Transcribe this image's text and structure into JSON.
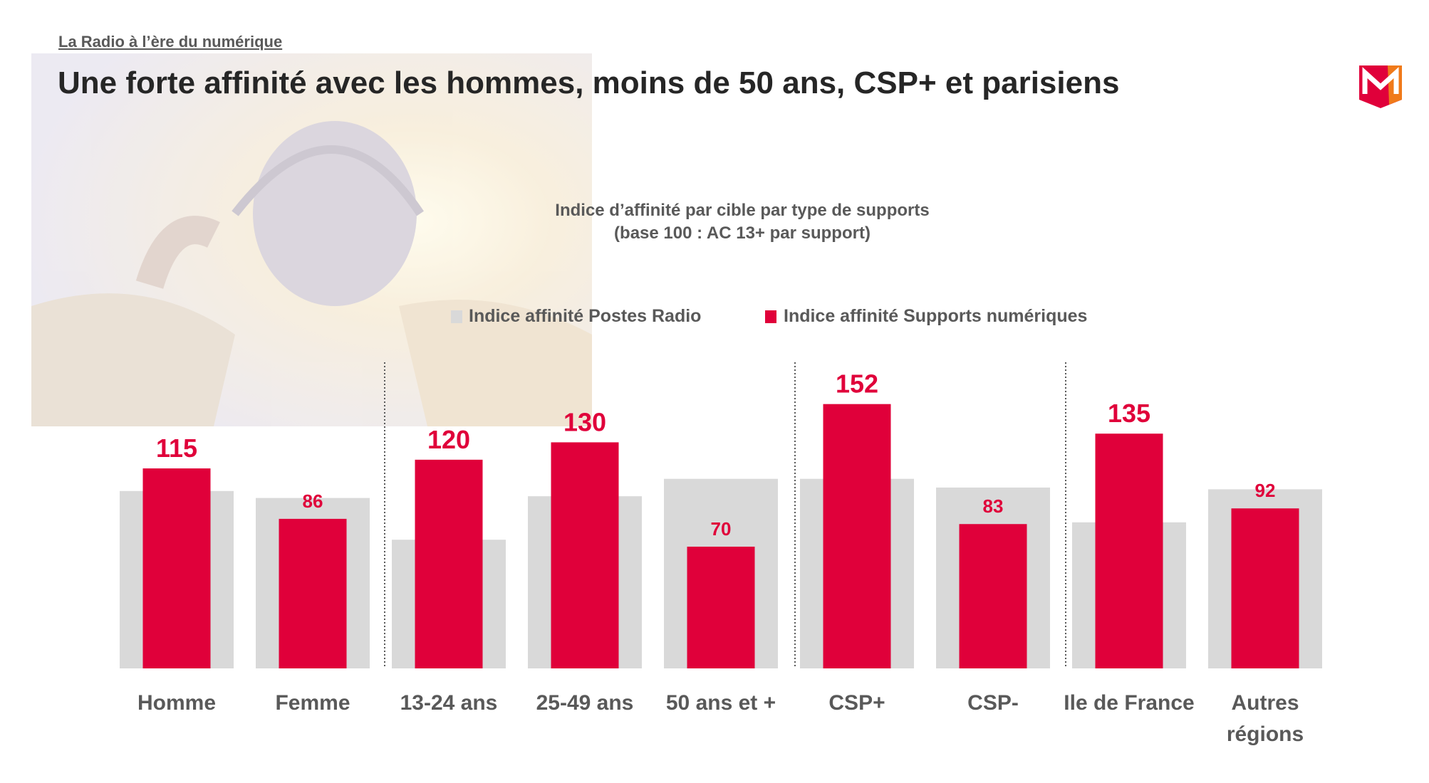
{
  "header": "La Radio à l’ère du numérique",
  "title": "Une forte affinité avec les hommes, moins de 50 ans, CSP+ et parisiens",
  "chart_data": {
    "type": "bar",
    "title": "Indice d’affinité par cible par type de supports",
    "subtitle": "(base 100 : AC 13+ par support)",
    "categories": [
      "Homme",
      "Femme",
      "13-24 ans",
      "25-49 ans",
      "50 ans et +",
      "CSP+",
      "CSP-",
      "Ile de France",
      "Autres régions"
    ],
    "series": [
      {
        "name": "Indice affinité Postes Radio",
        "color": "#d9d9d9",
        "values": [
          102,
          98,
          74,
          99,
          109,
          109,
          104,
          84,
          103
        ]
      },
      {
        "name": "Indice affinité Supports numériques",
        "color": "#e0003a",
        "values": [
          115,
          86,
          120,
          130,
          70,
          152,
          83,
          135,
          92
        ]
      }
    ]
  }
}
